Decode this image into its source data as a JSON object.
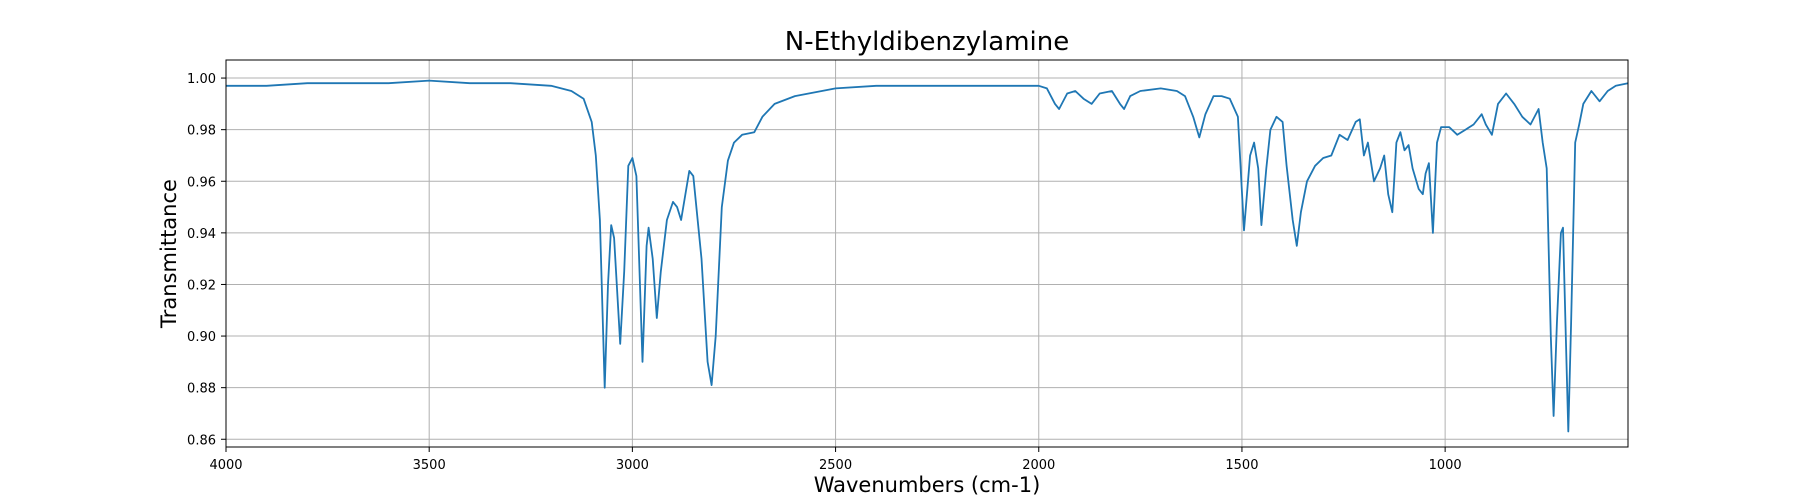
{
  "chart_data": {
    "type": "line",
    "title": "N-Ethyldibenzylamine",
    "xlabel": "Wavenumbers (cm-1)",
    "ylabel": "Transmittance",
    "xlim": [
      4000,
      550
    ],
    "ylim": [
      0.857,
      1.007
    ],
    "x_inverted": true,
    "grid": true,
    "line_color": "#1f77b4",
    "x_ticks": [
      4000,
      3500,
      3000,
      2500,
      2000,
      1500,
      1000
    ],
    "x_tick_labels": [
      "4000",
      "3500",
      "3000",
      "2500",
      "2000",
      "1500",
      "1000"
    ],
    "y_ticks": [
      0.86,
      0.88,
      0.9,
      0.92,
      0.94,
      0.96,
      0.98,
      1.0
    ],
    "y_tick_labels": [
      "0.86",
      "0.88",
      "0.90",
      "0.92",
      "0.94",
      "0.96",
      "0.98",
      "1.00"
    ],
    "series": [
      {
        "points": [
          [
            4000,
            0.997
          ],
          [
            3900,
            0.997
          ],
          [
            3800,
            0.998
          ],
          [
            3700,
            0.998
          ],
          [
            3600,
            0.998
          ],
          [
            3500,
            0.999
          ],
          [
            3400,
            0.998
          ],
          [
            3300,
            0.998
          ],
          [
            3200,
            0.997
          ],
          [
            3150,
            0.995
          ],
          [
            3120,
            0.992
          ],
          [
            3100,
            0.983
          ],
          [
            3090,
            0.97
          ],
          [
            3080,
            0.945
          ],
          [
            3068,
            0.88
          ],
          [
            3060,
            0.92
          ],
          [
            3052,
            0.943
          ],
          [
            3045,
            0.938
          ],
          [
            3030,
            0.897
          ],
          [
            3020,
            0.925
          ],
          [
            3010,
            0.966
          ],
          [
            3000,
            0.969
          ],
          [
            2990,
            0.962
          ],
          [
            2975,
            0.89
          ],
          [
            2965,
            0.935
          ],
          [
            2960,
            0.942
          ],
          [
            2950,
            0.93
          ],
          [
            2940,
            0.907
          ],
          [
            2930,
            0.925
          ],
          [
            2915,
            0.945
          ],
          [
            2900,
            0.952
          ],
          [
            2890,
            0.95
          ],
          [
            2880,
            0.945
          ],
          [
            2860,
            0.964
          ],
          [
            2850,
            0.962
          ],
          [
            2830,
            0.93
          ],
          [
            2815,
            0.89
          ],
          [
            2805,
            0.881
          ],
          [
            2795,
            0.9
          ],
          [
            2780,
            0.95
          ],
          [
            2765,
            0.968
          ],
          [
            2750,
            0.975
          ],
          [
            2730,
            0.978
          ],
          [
            2700,
            0.979
          ],
          [
            2680,
            0.985
          ],
          [
            2650,
            0.99
          ],
          [
            2600,
            0.993
          ],
          [
            2500,
            0.996
          ],
          [
            2400,
            0.997
          ],
          [
            2300,
            0.997
          ],
          [
            2200,
            0.997
          ],
          [
            2100,
            0.997
          ],
          [
            2000,
            0.997
          ],
          [
            1980,
            0.996
          ],
          [
            1960,
            0.99
          ],
          [
            1950,
            0.988
          ],
          [
            1930,
            0.994
          ],
          [
            1910,
            0.995
          ],
          [
            1890,
            0.992
          ],
          [
            1870,
            0.99
          ],
          [
            1850,
            0.994
          ],
          [
            1820,
            0.995
          ],
          [
            1800,
            0.99
          ],
          [
            1790,
            0.988
          ],
          [
            1775,
            0.993
          ],
          [
            1750,
            0.995
          ],
          [
            1700,
            0.996
          ],
          [
            1660,
            0.995
          ],
          [
            1640,
            0.993
          ],
          [
            1620,
            0.985
          ],
          [
            1605,
            0.977
          ],
          [
            1590,
            0.986
          ],
          [
            1570,
            0.993
          ],
          [
            1550,
            0.993
          ],
          [
            1530,
            0.992
          ],
          [
            1510,
            0.985
          ],
          [
            1495,
            0.941
          ],
          [
            1480,
            0.97
          ],
          [
            1470,
            0.975
          ],
          [
            1460,
            0.965
          ],
          [
            1452,
            0.943
          ],
          [
            1440,
            0.965
          ],
          [
            1430,
            0.98
          ],
          [
            1415,
            0.985
          ],
          [
            1400,
            0.983
          ],
          [
            1390,
            0.966
          ],
          [
            1375,
            0.945
          ],
          [
            1365,
            0.935
          ],
          [
            1355,
            0.948
          ],
          [
            1340,
            0.96
          ],
          [
            1320,
            0.966
          ],
          [
            1300,
            0.969
          ],
          [
            1280,
            0.97
          ],
          [
            1260,
            0.978
          ],
          [
            1240,
            0.976
          ],
          [
            1220,
            0.983
          ],
          [
            1210,
            0.984
          ],
          [
            1200,
            0.97
          ],
          [
            1190,
            0.975
          ],
          [
            1175,
            0.96
          ],
          [
            1160,
            0.965
          ],
          [
            1150,
            0.97
          ],
          [
            1140,
            0.955
          ],
          [
            1130,
            0.948
          ],
          [
            1120,
            0.975
          ],
          [
            1110,
            0.979
          ],
          [
            1100,
            0.972
          ],
          [
            1090,
            0.974
          ],
          [
            1080,
            0.965
          ],
          [
            1065,
            0.957
          ],
          [
            1055,
            0.955
          ],
          [
            1048,
            0.963
          ],
          [
            1040,
            0.967
          ],
          [
            1030,
            0.94
          ],
          [
            1020,
            0.975
          ],
          [
            1010,
            0.981
          ],
          [
            990,
            0.981
          ],
          [
            970,
            0.978
          ],
          [
            950,
            0.98
          ],
          [
            930,
            0.982
          ],
          [
            910,
            0.986
          ],
          [
            900,
            0.982
          ],
          [
            885,
            0.978
          ],
          [
            870,
            0.99
          ],
          [
            850,
            0.994
          ],
          [
            830,
            0.99
          ],
          [
            810,
            0.985
          ],
          [
            790,
            0.982
          ],
          [
            770,
            0.988
          ],
          [
            760,
            0.975
          ],
          [
            750,
            0.965
          ],
          [
            740,
            0.9
          ],
          [
            733,
            0.869
          ],
          [
            725,
            0.905
          ],
          [
            715,
            0.94
          ],
          [
            710,
            0.942
          ],
          [
            703,
            0.9
          ],
          [
            697,
            0.863
          ],
          [
            690,
            0.905
          ],
          [
            680,
            0.975
          ],
          [
            670,
            0.982
          ],
          [
            660,
            0.99
          ],
          [
            640,
            0.995
          ],
          [
            620,
            0.991
          ],
          [
            600,
            0.995
          ],
          [
            580,
            0.997
          ],
          [
            550,
            0.998
          ]
        ]
      }
    ]
  }
}
